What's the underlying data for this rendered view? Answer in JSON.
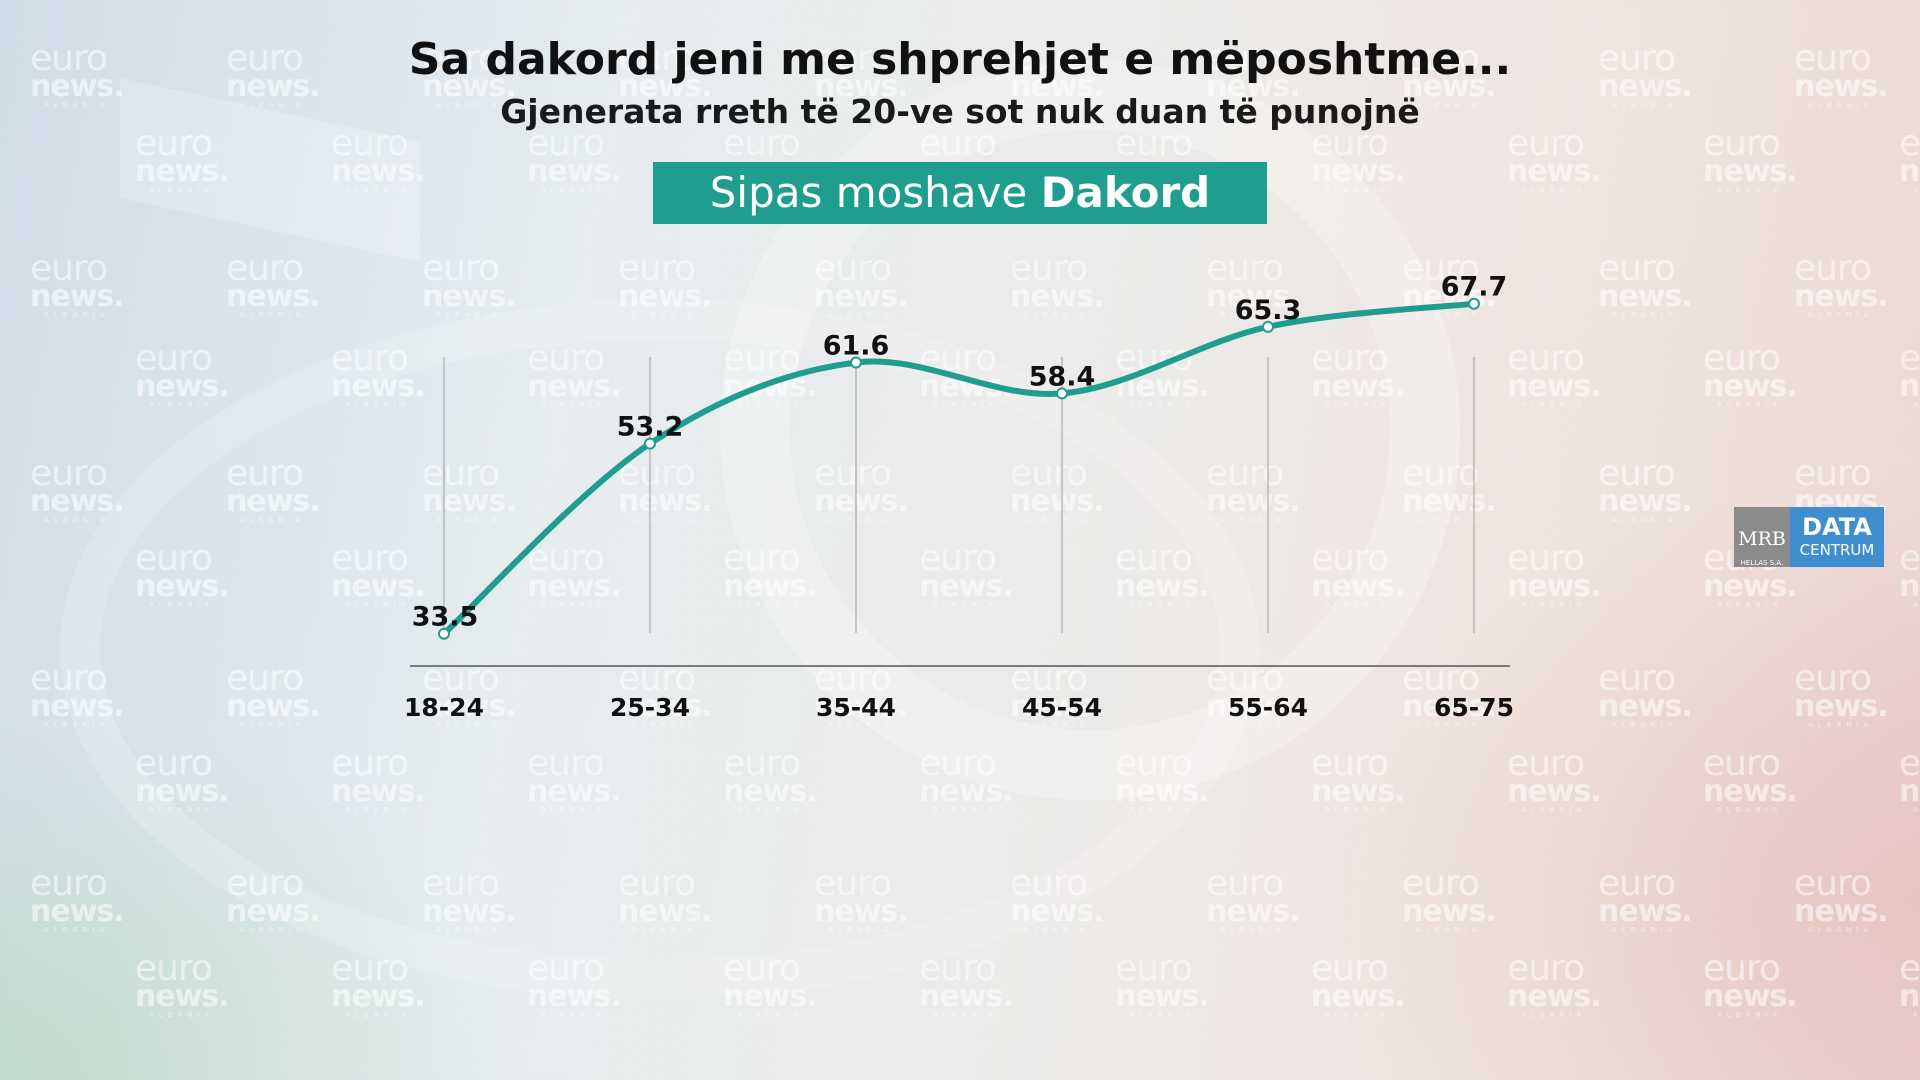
{
  "header": {
    "title": "Sa dakord jeni me shprehjet e mëposhtme...",
    "subtitle": "Gjenerata rreth të 20-ve sot nuk duan të punojnë",
    "banner_prefix": "Sipas moshave",
    "banner_bold": "Dakord"
  },
  "watermark": {
    "line1": "euro",
    "line2": "news.",
    "line3": "ALBANIA"
  },
  "logo": {
    "mrb": "MRB",
    "mrb_sub": "HELLAS S.A.",
    "data": "DATA",
    "centrum": "CENTRUM"
  },
  "colors": {
    "accent": "#1f9e8f",
    "logo_gray": "#8b8b8b",
    "logo_blue": "#3f8fd0"
  },
  "chart_data": {
    "type": "line",
    "categories": [
      "18-24",
      "25-34",
      "35-44",
      "45-54",
      "55-64",
      "65-75"
    ],
    "values": [
      33.5,
      53.2,
      61.6,
      58.4,
      65.3,
      67.7
    ],
    "data_labels": [
      "33.5",
      "53.2",
      "61.6",
      "58.4",
      "65.3",
      "67.7"
    ],
    "ylim": [
      0,
      80
    ],
    "grid": "vertical",
    "legend": "none"
  }
}
